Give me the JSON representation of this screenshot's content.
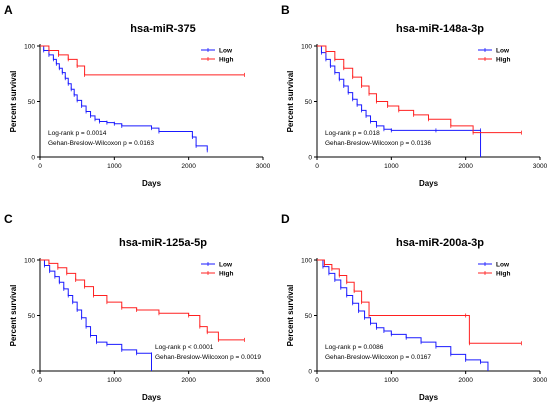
{
  "chart_data": [
    {
      "panel": "A",
      "type": "line",
      "title": "hsa-miR-375",
      "xlabel": "Days",
      "ylabel": "Percent survival",
      "xlim": [
        0,
        3000
      ],
      "ylim": [
        0,
        100
      ],
      "xticks": [
        0,
        1000,
        2000,
        3000
      ],
      "yticks": [
        0,
        50,
        100
      ],
      "legend_position": "top-right",
      "stats": [
        "Log-rank p = 0.0014",
        "Gehan-Breslow-Wilcoxon p = 0.0163"
      ],
      "stats_position": "bottom-left",
      "series": [
        {
          "name": "Low",
          "color": "#1a1aff",
          "x": [
            0,
            50,
            120,
            180,
            220,
            260,
            300,
            340,
            380,
            420,
            460,
            500,
            560,
            620,
            680,
            740,
            800,
            900,
            1000,
            1100,
            1500,
            1600,
            2050,
            2100,
            2250
          ],
          "y": [
            100,
            96,
            92,
            88,
            84,
            80,
            76,
            71,
            66,
            61,
            56,
            51,
            46,
            41,
            37,
            34,
            32,
            31,
            30,
            28,
            26,
            23,
            18,
            10,
            6
          ]
        },
        {
          "name": "High",
          "color": "#ff2020",
          "x": [
            0,
            120,
            250,
            380,
            500,
            600,
            2750
          ],
          "y": [
            100,
            96,
            92,
            88,
            82,
            74,
            74
          ]
        }
      ]
    },
    {
      "panel": "B",
      "type": "line",
      "title": "hsa-miR-148a-3p",
      "xlabel": "Days",
      "ylabel": "Percent survival",
      "xlim": [
        0,
        3000
      ],
      "ylim": [
        0,
        100
      ],
      "xticks": [
        0,
        1000,
        2000,
        3000
      ],
      "yticks": [
        0,
        50,
        100
      ],
      "legend_position": "top-right",
      "stats": [
        "Log-rank p = 0.018",
        "Gehan-Breslow-Wilcoxon p = 0.0136"
      ],
      "stats_position": "bottom-left",
      "series": [
        {
          "name": "Low",
          "color": "#1a1aff",
          "x": [
            0,
            60,
            120,
            180,
            240,
            300,
            360,
            420,
            480,
            540,
            600,
            660,
            720,
            800,
            900,
            1000,
            1600,
            2200,
            2200
          ],
          "y": [
            100,
            94,
            88,
            82,
            76,
            70,
            64,
            58,
            52,
            47,
            42,
            37,
            32,
            28,
            25,
            24,
            24,
            24,
            0
          ]
        },
        {
          "name": "High",
          "color": "#ff2020",
          "x": [
            0,
            120,
            240,
            360,
            480,
            600,
            700,
            800,
            950,
            1100,
            1300,
            1500,
            1800,
            2100,
            2750
          ],
          "y": [
            100,
            95,
            88,
            80,
            72,
            64,
            57,
            50,
            46,
            42,
            38,
            34,
            28,
            22,
            22
          ]
        }
      ]
    },
    {
      "panel": "C",
      "type": "line",
      "title": "hsa-miR-125a-5p",
      "xlabel": "Days",
      "ylabel": "Percent survival",
      "xlim": [
        0,
        3000
      ],
      "ylim": [
        0,
        100
      ],
      "xticks": [
        0,
        1000,
        2000,
        3000
      ],
      "yticks": [
        0,
        50,
        100
      ],
      "legend_position": "top-right",
      "stats": [
        "Log-rank p < 0.0001",
        "Gehan-Breslow-Wilcoxon p = 0.0019"
      ],
      "stats_position": "bottom-right",
      "series": [
        {
          "name": "Low",
          "color": "#1a1aff",
          "x": [
            0,
            60,
            130,
            200,
            260,
            320,
            380,
            440,
            500,
            560,
            620,
            680,
            760,
            900,
            1100,
            1300,
            1500,
            1500
          ],
          "y": [
            100,
            95,
            90,
            85,
            80,
            74,
            68,
            62,
            55,
            48,
            40,
            32,
            26,
            24,
            19,
            16,
            15,
            0
          ]
        },
        {
          "name": "High",
          "color": "#ff2020",
          "x": [
            0,
            120,
            240,
            360,
            480,
            600,
            720,
            900,
            1100,
            1300,
            1600,
            2000,
            2150,
            2250,
            2400,
            2750
          ],
          "y": [
            100,
            97,
            93,
            88,
            82,
            76,
            68,
            62,
            57,
            55,
            52,
            50,
            40,
            35,
            28,
            28
          ]
        }
      ]
    },
    {
      "panel": "D",
      "type": "line",
      "title": "hsa-miR-200a-3p",
      "xlabel": "Days",
      "ylabel": "Percent survival",
      "xlim": [
        0,
        3000
      ],
      "ylim": [
        0,
        100
      ],
      "xticks": [
        0,
        1000,
        2000,
        3000
      ],
      "yticks": [
        0,
        50,
        100
      ],
      "legend_position": "top-right",
      "stats": [
        "Log-rank p = 0.0086",
        "Gehan-Breslow-Wilcoxon p = 0.0167"
      ],
      "stats_position": "bottom-left",
      "series": [
        {
          "name": "Low",
          "color": "#1a1aff",
          "x": [
            0,
            80,
            160,
            240,
            320,
            400,
            480,
            560,
            640,
            720,
            800,
            900,
            1000,
            1200,
            1400,
            1600,
            1800,
            2000,
            2200,
            2300
          ],
          "y": [
            100,
            94,
            88,
            82,
            75,
            68,
            61,
            54,
            48,
            43,
            39,
            36,
            33,
            30,
            26,
            22,
            15,
            10,
            8,
            0
          ]
        },
        {
          "name": "High",
          "color": "#ff2020",
          "x": [
            0,
            100,
            200,
            300,
            400,
            500,
            600,
            700,
            2000,
            2050,
            2750
          ],
          "y": [
            100,
            96,
            92,
            86,
            80,
            72,
            62,
            50,
            50,
            25,
            25
          ]
        }
      ]
    }
  ]
}
